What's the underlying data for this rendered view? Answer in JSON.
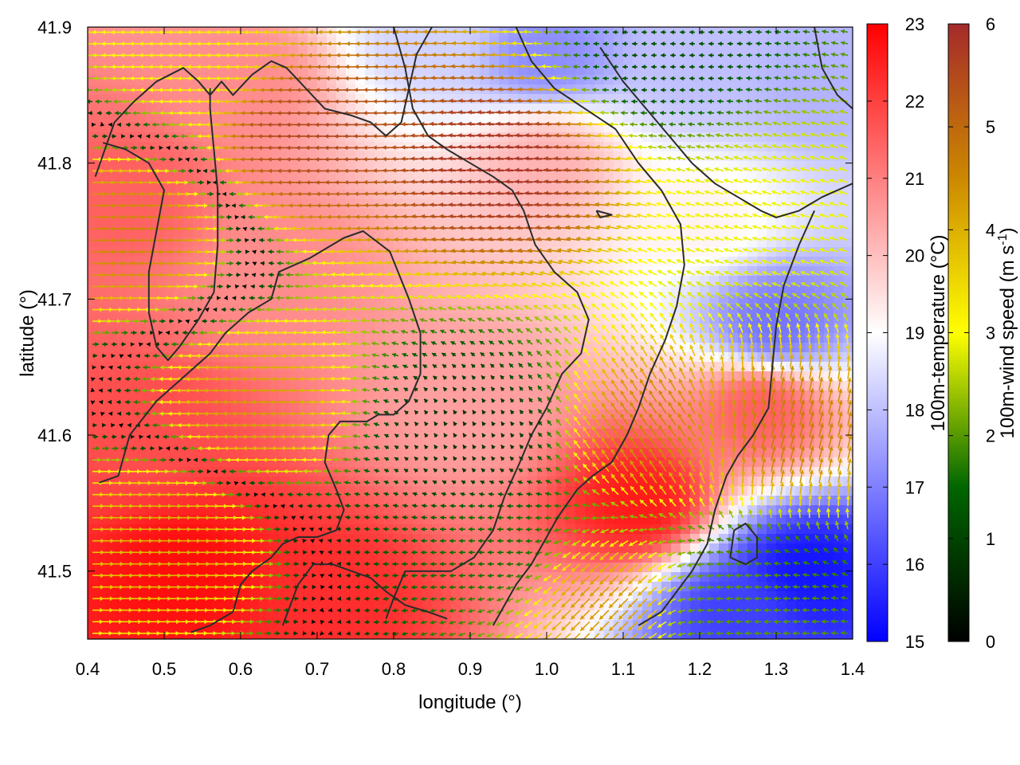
{
  "chart_data": {
    "type": "heatmap",
    "title": "",
    "xlabel": "longitude (°)",
    "ylabel": "latitude (°)",
    "xlim": [
      0.4,
      1.4
    ],
    "ylim": [
      41.45,
      41.9
    ],
    "x_ticks": [
      "0.4",
      "0.5",
      "0.6",
      "0.7",
      "0.8",
      "0.9",
      "1.0",
      "1.1",
      "1.2",
      "1.3",
      "1.4"
    ],
    "y_ticks": [
      "41.5",
      "41.6",
      "41.7",
      "41.8",
      "41.9"
    ],
    "temperature": {
      "label": "100m-temperature (°C)",
      "range": [
        15,
        23
      ],
      "ticks": [
        "15",
        "16",
        "17",
        "18",
        "19",
        "20",
        "21",
        "22",
        "23"
      ],
      "colors": [
        "#0000ff",
        "#ffffff",
        "#ff0000"
      ],
      "features": [
        {
          "lon": 0.45,
          "lat": 41.78,
          "value": 21.5
        },
        {
          "lon": 0.53,
          "lat": 41.5,
          "value": 22.8
        },
        {
          "lon": 0.72,
          "lat": 41.48,
          "value": 22.3
        },
        {
          "lon": 0.47,
          "lat": 41.6,
          "value": 21.8
        },
        {
          "lon": 0.65,
          "lat": 41.72,
          "value": 20.8
        },
        {
          "lon": 0.9,
          "lat": 41.62,
          "value": 20.5
        },
        {
          "lon": 1.12,
          "lat": 41.55,
          "value": 22.6
        },
        {
          "lon": 1.28,
          "lat": 41.62,
          "value": 21.5
        },
        {
          "lon": 1.0,
          "lat": 41.8,
          "value": 20.2
        },
        {
          "lon": 1.0,
          "lat": 41.88,
          "value": 17.2
        },
        {
          "lon": 1.2,
          "lat": 41.87,
          "value": 18.0
        },
        {
          "lon": 1.35,
          "lat": 41.86,
          "value": 17.8
        },
        {
          "lon": 0.85,
          "lat": 41.89,
          "value": 18.3
        },
        {
          "lon": 1.3,
          "lat": 41.68,
          "value": 16.8
        },
        {
          "lon": 1.34,
          "lat": 41.5,
          "value": 15.3
        },
        {
          "lon": 1.25,
          "lat": 41.47,
          "value": 16.0
        },
        {
          "lon": 1.2,
          "lat": 41.76,
          "value": 19.2
        },
        {
          "lon": 0.6,
          "lat": 41.86,
          "value": 20.8
        }
      ]
    },
    "wind": {
      "label_main": "100m-wind speed (m s",
      "label_sup": "-1",
      "label_end": ")",
      "range": [
        0,
        6
      ],
      "ticks": [
        "0",
        "1",
        "2",
        "3",
        "4",
        "5",
        "6"
      ],
      "colors": [
        "#000000",
        "#006600",
        "#ffff00",
        "#cc8800",
        "#a52a2a"
      ],
      "features": [
        {
          "lon": 0.45,
          "lat": 41.75,
          "u": 4.5,
          "v": 0
        },
        {
          "lon": 0.7,
          "lat": 41.82,
          "u": -5.5,
          "v": 0
        },
        {
          "lon": 0.95,
          "lat": 41.8,
          "u": -5.8,
          "v": 0.4
        },
        {
          "lon": 0.62,
          "lat": 41.62,
          "u": -4.2,
          "v": 0
        },
        {
          "lon": 0.5,
          "lat": 41.53,
          "u": 4.0,
          "v": 0
        },
        {
          "lon": 0.9,
          "lat": 41.6,
          "u": -0.4,
          "v": 0.6
        },
        {
          "lon": 0.93,
          "lat": 41.52,
          "u": -1.6,
          "v": 0
        },
        {
          "lon": 1.15,
          "lat": 41.6,
          "u": -2.5,
          "v": 3.8
        },
        {
          "lon": 1.08,
          "lat": 41.48,
          "u": -3.0,
          "v": -3.0
        },
        {
          "lon": 1.3,
          "lat": 41.6,
          "u": 1.2,
          "v": 4.5
        },
        {
          "lon": 1.25,
          "lat": 41.47,
          "u": -2.0,
          "v": 0
        },
        {
          "lon": 1.15,
          "lat": 41.88,
          "u": -1.2,
          "v": 0
        },
        {
          "lon": 1.3,
          "lat": 41.76,
          "u": -2.8,
          "v": 0.8
        },
        {
          "lon": 0.55,
          "lat": 41.88,
          "u": -3.2,
          "v": 0
        }
      ]
    },
    "contours": [
      [
        [
          0.41,
          41.79
        ],
        [
          0.435,
          41.83
        ],
        [
          0.46,
          41.845
        ],
        [
          0.49,
          41.86
        ],
        [
          0.525,
          41.87
        ],
        [
          0.545,
          41.86
        ],
        [
          0.56,
          41.85
        ],
        [
          0.575,
          41.86
        ],
        [
          0.59,
          41.85
        ],
        [
          0.615,
          41.865
        ],
        [
          0.64,
          41.875
        ],
        [
          0.66,
          41.87
        ],
        [
          0.685,
          41.855
        ],
        [
          0.71,
          41.84
        ],
        [
          0.745,
          41.835
        ],
        [
          0.77,
          41.83
        ],
        [
          0.79,
          41.82
        ],
        [
          0.81,
          41.83
        ],
        [
          0.83,
          41.88
        ],
        [
          0.85,
          41.9
        ]
      ],
      [
        [
          0.42,
          41.815
        ],
        [
          0.45,
          41.81
        ],
        [
          0.48,
          41.8
        ],
        [
          0.5,
          41.78
        ],
        [
          0.49,
          41.75
        ],
        [
          0.48,
          41.72
        ],
        [
          0.48,
          41.69
        ],
        [
          0.49,
          41.665
        ],
        [
          0.505,
          41.655
        ],
        [
          0.52,
          41.665
        ],
        [
          0.545,
          41.685
        ],
        [
          0.565,
          41.705
        ],
        [
          0.57,
          41.74
        ],
        [
          0.57,
          41.78
        ],
        [
          0.565,
          41.81
        ],
        [
          0.56,
          41.84
        ],
        [
          0.56,
          41.855
        ]
      ],
      [
        [
          0.415,
          41.565
        ],
        [
          0.44,
          41.57
        ],
        [
          0.455,
          41.6
        ],
        [
          0.49,
          41.625
        ],
        [
          0.52,
          41.64
        ],
        [
          0.56,
          41.66
        ],
        [
          0.58,
          41.675
        ],
        [
          0.61,
          41.69
        ],
        [
          0.64,
          41.7
        ],
        [
          0.65,
          41.72
        ],
        [
          0.69,
          41.73
        ],
        [
          0.735,
          41.745
        ],
        [
          0.76,
          41.75
        ],
        [
          0.795,
          41.735
        ],
        [
          0.82,
          41.7
        ],
        [
          0.835,
          41.675
        ],
        [
          0.835,
          41.645
        ],
        [
          0.82,
          41.625
        ],
        [
          0.8,
          41.615
        ],
        [
          0.78,
          41.615
        ],
        [
          0.765,
          41.61
        ],
        [
          0.73,
          41.61
        ],
        [
          0.715,
          41.6
        ],
        [
          0.71,
          41.58
        ],
        [
          0.725,
          41.56
        ],
        [
          0.735,
          41.545
        ],
        [
          0.725,
          41.53
        ],
        [
          0.7,
          41.525
        ],
        [
          0.675,
          41.525
        ],
        [
          0.655,
          41.52
        ],
        [
          0.64,
          41.51
        ],
        [
          0.615,
          41.5
        ],
        [
          0.6,
          41.49
        ],
        [
          0.59,
          41.47
        ],
        [
          0.56,
          41.46
        ],
        [
          0.535,
          41.455
        ]
      ],
      [
        [
          0.655,
          41.46
        ],
        [
          0.675,
          41.49
        ],
        [
          0.695,
          41.505
        ],
        [
          0.72,
          41.505
        ],
        [
          0.745,
          41.5
        ],
        [
          0.77,
          41.495
        ],
        [
          0.79,
          41.485
        ],
        [
          0.815,
          41.475
        ],
        [
          0.845,
          41.47
        ],
        [
          0.87,
          41.465
        ]
      ],
      [
        [
          0.8,
          41.9
        ],
        [
          0.815,
          41.87
        ],
        [
          0.825,
          41.84
        ],
        [
          0.845,
          41.82
        ],
        [
          0.87,
          41.81
        ],
        [
          0.9,
          41.8
        ],
        [
          0.93,
          41.79
        ],
        [
          0.955,
          41.78
        ],
        [
          0.97,
          41.765
        ],
        [
          0.985,
          41.74
        ],
        [
          1.01,
          41.72
        ],
        [
          1.04,
          41.705
        ],
        [
          1.055,
          41.685
        ],
        [
          1.045,
          41.66
        ],
        [
          1.02,
          41.645
        ],
        [
          1.0,
          41.62
        ],
        [
          0.98,
          41.6
        ],
        [
          0.965,
          41.58
        ],
        [
          0.945,
          41.555
        ],
        [
          0.93,
          41.53
        ],
        [
          0.905,
          41.51
        ],
        [
          0.875,
          41.5
        ],
        [
          0.845,
          41.5
        ],
        [
          0.815,
          41.5
        ],
        [
          0.8,
          41.48
        ],
        [
          0.79,
          41.465
        ]
      ],
      [
        [
          0.96,
          41.9
        ],
        [
          0.98,
          41.875
        ],
        [
          1.01,
          41.855
        ],
        [
          1.05,
          41.84
        ],
        [
          1.09,
          41.825
        ],
        [
          1.12,
          41.8
        ],
        [
          1.15,
          41.78
        ],
        [
          1.175,
          41.755
        ],
        [
          1.18,
          41.725
        ],
        [
          1.17,
          41.695
        ],
        [
          1.155,
          41.67
        ],
        [
          1.135,
          41.645
        ],
        [
          1.12,
          41.62
        ],
        [
          1.105,
          41.6
        ],
        [
          1.085,
          41.58
        ],
        [
          1.06,
          41.57
        ],
        [
          1.04,
          41.56
        ],
        [
          1.015,
          41.54
        ],
        [
          0.995,
          41.52
        ],
        [
          0.98,
          41.505
        ],
        [
          0.96,
          41.49
        ],
        [
          0.945,
          41.475
        ],
        [
          0.93,
          41.46
        ]
      ],
      [
        [
          1.35,
          41.765
        ],
        [
          1.33,
          41.74
        ],
        [
          1.31,
          41.71
        ],
        [
          1.3,
          41.68
        ],
        [
          1.295,
          41.65
        ],
        [
          1.29,
          41.62
        ],
        [
          1.27,
          41.6
        ],
        [
          1.25,
          41.585
        ],
        [
          1.235,
          41.57
        ],
        [
          1.22,
          41.545
        ],
        [
          1.21,
          41.52
        ],
        [
          1.19,
          41.5
        ],
        [
          1.17,
          41.485
        ],
        [
          1.15,
          41.47
        ],
        [
          1.12,
          41.46
        ]
      ],
      [
        [
          1.07,
          41.885
        ],
        [
          1.1,
          41.86
        ],
        [
          1.13,
          41.84
        ],
        [
          1.16,
          41.82
        ],
        [
          1.19,
          41.8
        ],
        [
          1.22,
          41.785
        ],
        [
          1.25,
          41.775
        ],
        [
          1.28,
          41.765
        ],
        [
          1.3,
          41.76
        ],
        [
          1.33,
          41.765
        ],
        [
          1.36,
          41.775
        ],
        [
          1.4,
          41.785
        ]
      ],
      [
        [
          1.35,
          41.9
        ],
        [
          1.36,
          41.87
        ],
        [
          1.38,
          41.85
        ],
        [
          1.4,
          41.84
        ]
      ],
      [
        [
          1.24,
          41.51
        ],
        [
          1.26,
          41.505
        ],
        [
          1.275,
          41.51
        ],
        [
          1.275,
          41.525
        ],
        [
          1.26,
          41.535
        ],
        [
          1.245,
          41.53
        ],
        [
          1.24,
          41.51
        ]
      ],
      [
        [
          1.065,
          41.765
        ],
        [
          1.085,
          41.762
        ],
        [
          1.07,
          41.76
        ],
        [
          1.065,
          41.765
        ]
      ]
    ]
  }
}
